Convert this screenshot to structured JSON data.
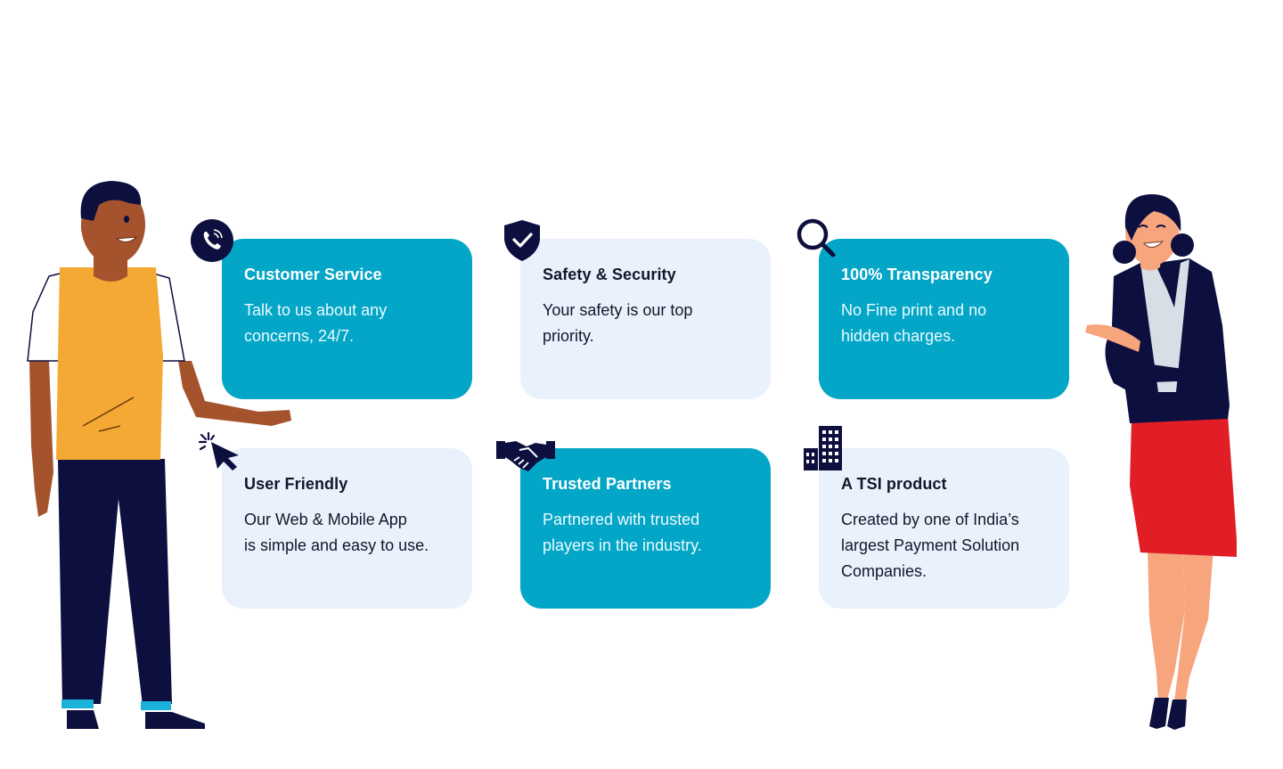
{
  "colors": {
    "teal": "#04a6c7",
    "light": "#e9f1fd",
    "navy": "#0d0f3f",
    "orange": "#f4a935",
    "red": "#e11e26",
    "skin_dark": "#a5532d",
    "skin_light": "#f6a57d"
  },
  "cards": [
    {
      "icon": "phone-icon",
      "title": "Customer Service",
      "desc": "Talk to us about any\nconcerns, 24/7.",
      "style": "teal"
    },
    {
      "icon": "shield-check-icon",
      "title": "Safety & Security",
      "desc": "Your safety is our top\npriority.",
      "style": "light"
    },
    {
      "icon": "magnifier-icon",
      "title": "100% Transparency",
      "desc": "No Fine print and no\nhidden charges.",
      "style": "teal"
    },
    {
      "icon": "cursor-click-icon",
      "title": "User Friendly",
      "desc": "Our Web & Mobile App\nis simple and easy to use.",
      "style": "light"
    },
    {
      "icon": "handshake-icon",
      "title": "Trusted Partners",
      "desc": "Partnered with trusted\nplayers in the industry.",
      "style": "teal"
    },
    {
      "icon": "building-icon",
      "title": "A TSI product",
      "desc": "Created by one of India’s\nlargest Payment Solution\nCompanies.",
      "style": "light"
    }
  ]
}
